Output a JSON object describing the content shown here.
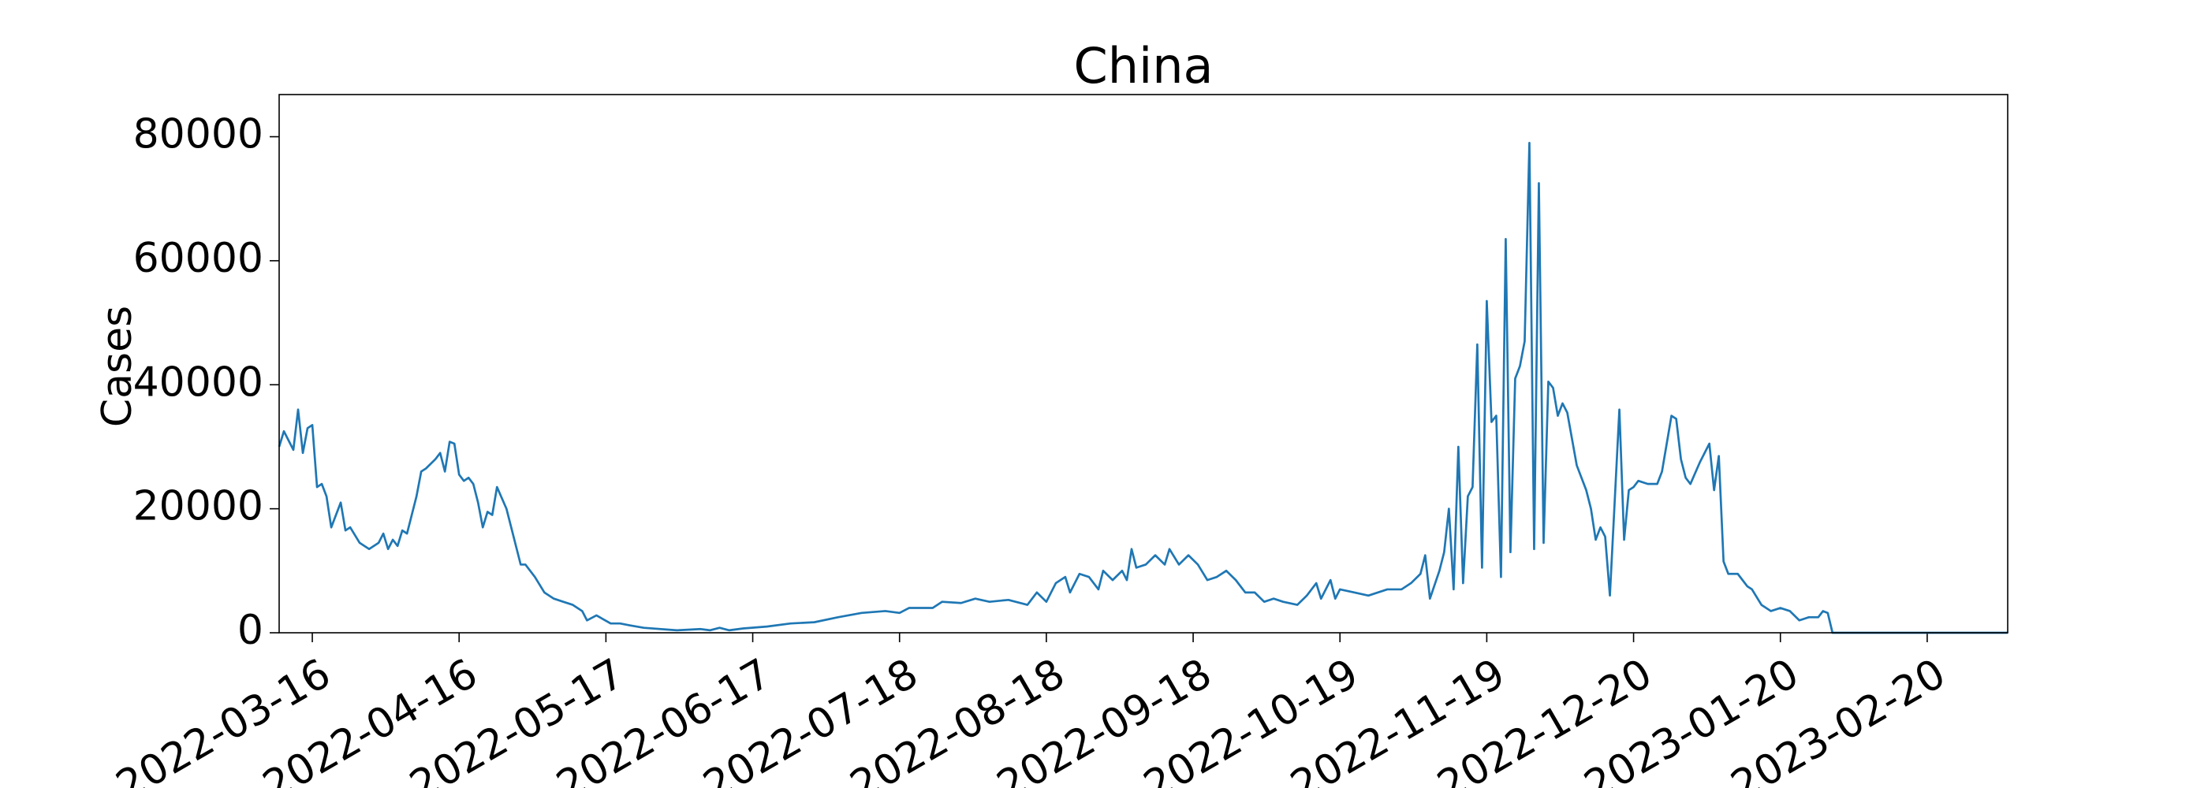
{
  "chart_data": {
    "type": "line",
    "title": "China",
    "y_label": "Cases",
    "xlim": [
      "2022-03-09",
      "2023-03-09"
    ],
    "xticks": [
      "2022-03-16",
      "2022-04-16",
      "2022-05-17",
      "2022-06-17",
      "2022-07-18",
      "2022-08-18",
      "2022-09-18",
      "2022-10-19",
      "2022-11-19",
      "2022-12-20",
      "2023-01-20",
      "2023-02-20"
    ],
    "ylim": [
      0,
      86800
    ],
    "yticks": [
      0,
      20000,
      40000,
      60000,
      80000
    ],
    "x": [
      "2022-03-09",
      "2022-03-10",
      "2022-03-12",
      "2022-03-13",
      "2022-03-14",
      "2022-03-15",
      "2022-03-16",
      "2022-03-17",
      "2022-03-18",
      "2022-03-19",
      "2022-03-20",
      "2022-03-22",
      "2022-03-23",
      "2022-03-24",
      "2022-03-26",
      "2022-03-28",
      "2022-03-30",
      "2022-03-31",
      "2022-04-01",
      "2022-04-02",
      "2022-04-03",
      "2022-04-04",
      "2022-04-05",
      "2022-04-07",
      "2022-04-08",
      "2022-04-09",
      "2022-04-11",
      "2022-04-12",
      "2022-04-13",
      "2022-04-14",
      "2022-04-15",
      "2022-04-16",
      "2022-04-17",
      "2022-04-18",
      "2022-04-19",
      "2022-04-20",
      "2022-04-21",
      "2022-04-22",
      "2022-04-23",
      "2022-04-24",
      "2022-04-26",
      "2022-04-28",
      "2022-04-29",
      "2022-04-30",
      "2022-05-02",
      "2022-05-04",
      "2022-05-06",
      "2022-05-08",
      "2022-05-10",
      "2022-05-12",
      "2022-05-13",
      "2022-05-15",
      "2022-05-18",
      "2022-05-20",
      "2022-05-22",
      "2022-05-25",
      "2022-06-01",
      "2022-06-06",
      "2022-06-08",
      "2022-06-10",
      "2022-06-12",
      "2022-06-15",
      "2022-06-20",
      "2022-06-25",
      "2022-06-30",
      "2022-07-05",
      "2022-07-10",
      "2022-07-15",
      "2022-07-18",
      "2022-07-20",
      "2022-07-25",
      "2022-07-27",
      "2022-07-31",
      "2022-08-03",
      "2022-08-06",
      "2022-08-10",
      "2022-08-14",
      "2022-08-16",
      "2022-08-18",
      "2022-08-20",
      "2022-08-22",
      "2022-08-23",
      "2022-08-25",
      "2022-08-27",
      "2022-08-29",
      "2022-08-30",
      "2022-09-01",
      "2022-09-03",
      "2022-09-04",
      "2022-09-05",
      "2022-09-06",
      "2022-09-08",
      "2022-09-10",
      "2022-09-12",
      "2022-09-13",
      "2022-09-15",
      "2022-09-17",
      "2022-09-19",
      "2022-09-21",
      "2022-09-23",
      "2022-09-25",
      "2022-09-27",
      "2022-09-29",
      "2022-10-01",
      "2022-10-03",
      "2022-10-05",
      "2022-10-07",
      "2022-10-10",
      "2022-10-12",
      "2022-10-14",
      "2022-10-15",
      "2022-10-17",
      "2022-10-18",
      "2022-10-19",
      "2022-10-22",
      "2022-10-25",
      "2022-10-29",
      "2022-11-01",
      "2022-11-03",
      "2022-11-05",
      "2022-11-06",
      "2022-11-07",
      "2022-11-09",
      "2022-11-10",
      "2022-11-11",
      "2022-11-12",
      "2022-11-13",
      "2022-11-14",
      "2022-11-15",
      "2022-11-16",
      "2022-11-17",
      "2022-11-18",
      "2022-11-19",
      "2022-11-20",
      "2022-11-21",
      "2022-11-22",
      "2022-11-23",
      "2022-11-24",
      "2022-11-25",
      "2022-11-26",
      "2022-11-27",
      "2022-11-28",
      "2022-11-29",
      "2022-11-30",
      "2022-12-01",
      "2022-12-02",
      "2022-12-03",
      "2022-12-04",
      "2022-12-05",
      "2022-12-06",
      "2022-12-08",
      "2022-12-10",
      "2022-12-11",
      "2022-12-12",
      "2022-12-13",
      "2022-12-14",
      "2022-12-15",
      "2022-12-16",
      "2022-12-17",
      "2022-12-18",
      "2022-12-19",
      "2022-12-20",
      "2022-12-21",
      "2022-12-23",
      "2022-12-25",
      "2022-12-26",
      "2022-12-28",
      "2022-12-29",
      "2022-12-30",
      "2022-12-31",
      "2023-01-01",
      "2023-01-03",
      "2023-01-05",
      "2023-01-06",
      "2023-01-07",
      "2023-01-08",
      "2023-01-09",
      "2023-01-11",
      "2023-01-13",
      "2023-01-14",
      "2023-01-16",
      "2023-01-18",
      "2023-01-20",
      "2023-01-22",
      "2023-01-24",
      "2023-01-26",
      "2023-01-28",
      "2023-01-29",
      "2023-01-30",
      "2023-01-31",
      "2023-03-09"
    ],
    "series": [
      {
        "color": "#1f77b4",
        "values": [
          30000,
          32500,
          29500,
          36000,
          29000,
          33000,
          33500,
          23500,
          24000,
          22000,
          17000,
          21000,
          16500,
          17000,
          14500,
          13500,
          14500,
          16000,
          13500,
          15000,
          14000,
          16500,
          16000,
          22000,
          26000,
          26500,
          28000,
          29000,
          26000,
          30800,
          30500,
          25500,
          24500,
          25000,
          24000,
          21000,
          17000,
          19500,
          19000,
          23500,
          20000,
          14000,
          11000,
          11000,
          9000,
          6500,
          5500,
          5000,
          4500,
          3500,
          2000,
          2800,
          1500,
          1500,
          1200,
          800,
          400,
          600,
          400,
          800,
          400,
          700,
          1000,
          1500,
          1700,
          2500,
          3200,
          3500,
          3200,
          4000,
          4000,
          5000,
          4800,
          5500,
          5000,
          5300,
          4500,
          6500,
          5000,
          8000,
          9000,
          6500,
          9500,
          9000,
          7000,
          10000,
          8500,
          10000,
          8500,
          13500,
          10500,
          11000,
          12500,
          11000,
          13500,
          11000,
          12500,
          11000,
          8500,
          9000,
          10000,
          8500,
          6500,
          6500,
          5000,
          5500,
          5000,
          4500,
          6000,
          8000,
          5500,
          8500,
          5500,
          7000,
          6500,
          6000,
          7000,
          7000,
          8000,
          9500,
          12500,
          5500,
          10000,
          13000,
          20000,
          7000,
          30000,
          8000,
          22000,
          23500,
          46500,
          10500,
          53500,
          34000,
          35000,
          9000,
          63500,
          13000,
          41000,
          43000,
          47000,
          79000,
          13500,
          72500,
          14500,
          40500,
          39500,
          35000,
          37000,
          35500,
          27000,
          23000,
          20000,
          15000,
          17000,
          15500,
          6000,
          21000,
          36000,
          15000,
          23000,
          23500,
          24500,
          24000,
          24000,
          26000,
          35000,
          34500,
          28000,
          25000,
          24000,
          27500,
          30500,
          23000,
          28500,
          11500,
          9500,
          9500,
          7500,
          7000,
          4500,
          3500,
          4000,
          3500,
          2000,
          2500,
          2500,
          3500,
          3200,
          0,
          0
        ]
      }
    ]
  }
}
